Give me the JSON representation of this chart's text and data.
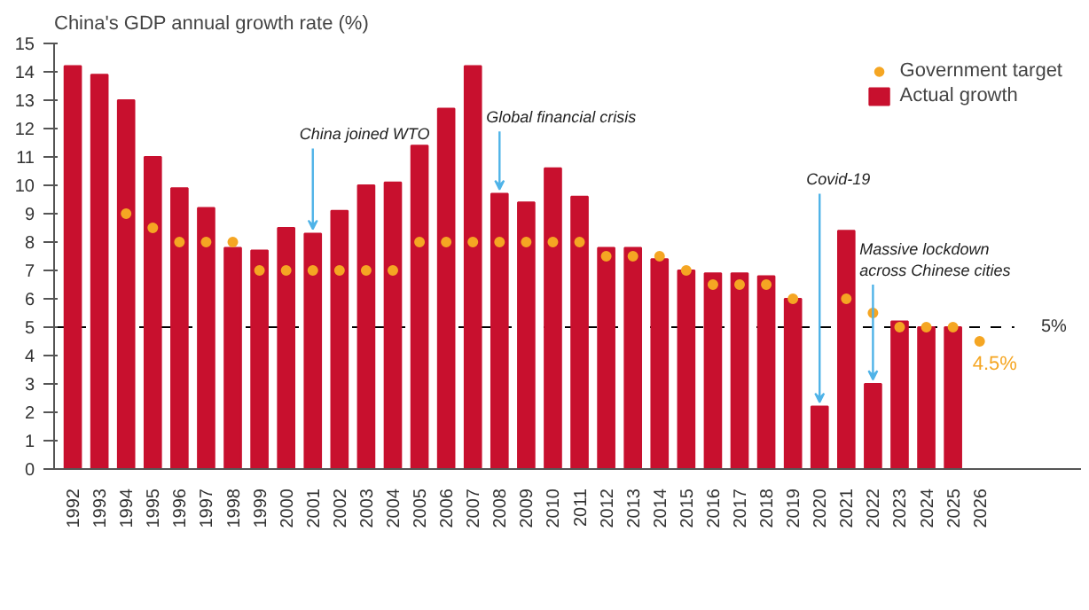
{
  "chart_data": {
    "type": "bar",
    "title": "China's GDP annual growth rate (%)",
    "categories": [
      "1992",
      "1993",
      "1994",
      "1995",
      "1996",
      "1997",
      "1998",
      "1999",
      "2000",
      "2001",
      "2002",
      "2003",
      "2004",
      "2005",
      "2006",
      "2007",
      "2008",
      "2009",
      "2010",
      "2011",
      "2012",
      "2013",
      "2014",
      "2015",
      "2016",
      "2017",
      "2018",
      "2019",
      "2020",
      "2021",
      "2022",
      "2023",
      "2024",
      "2025",
      "2026"
    ],
    "series": [
      {
        "name": "Actual growth",
        "type": "bar",
        "color": "#c8102e",
        "values": [
          14.2,
          13.9,
          13.0,
          11.0,
          9.9,
          9.2,
          7.8,
          7.7,
          8.5,
          8.3,
          9.1,
          10.0,
          10.1,
          11.4,
          12.7,
          14.2,
          9.7,
          9.4,
          10.6,
          9.6,
          7.8,
          7.8,
          7.4,
          7.0,
          6.9,
          6.9,
          6.8,
          6.0,
          2.2,
          8.4,
          3.0,
          5.2,
          5.0,
          5.0,
          null
        ]
      },
      {
        "name": "Government target",
        "type": "scatter",
        "marker": "circle",
        "color": "#f5a623",
        "values": [
          null,
          null,
          9,
          8.5,
          8,
          8,
          8,
          7,
          7,
          7,
          7,
          7,
          7,
          8,
          8,
          8,
          8,
          8,
          8,
          8,
          7.5,
          7.5,
          7.5,
          7,
          6.5,
          6.5,
          6.5,
          6,
          null,
          6,
          5.5,
          5,
          5,
          5,
          4.5
        ],
        "value_labels": [
          null,
          null,
          null,
          null,
          null,
          null,
          null,
          null,
          null,
          null,
          null,
          null,
          null,
          null,
          null,
          null,
          null,
          null,
          null,
          null,
          null,
          null,
          null,
          null,
          null,
          null,
          null,
          null,
          null,
          null,
          null,
          null,
          null,
          null,
          "4.5%"
        ]
      }
    ],
    "ylim": [
      0,
      15
    ],
    "yticks": [
      0,
      1,
      2,
      3,
      4,
      5,
      6,
      7,
      8,
      9,
      10,
      11,
      12,
      13,
      14,
      15
    ],
    "grid": false,
    "legend": "top right",
    "ref_lines": [
      {
        "axis": "y",
        "value": 5,
        "label": "5%",
        "line_style": "dashed",
        "color": "#000000"
      }
    ],
    "annotations": [
      {
        "text": "China joined WTO",
        "x": "2001",
        "y": 8.3
      },
      {
        "text": "Global financial crisis",
        "x": "2008",
        "y": 9.7
      },
      {
        "text": "Covid-19",
        "x": "2020",
        "y": 2.2
      },
      {
        "text": "Massive lockdown\nacross Chinese cities",
        "x": "2022",
        "y": 3.0
      }
    ]
  }
}
